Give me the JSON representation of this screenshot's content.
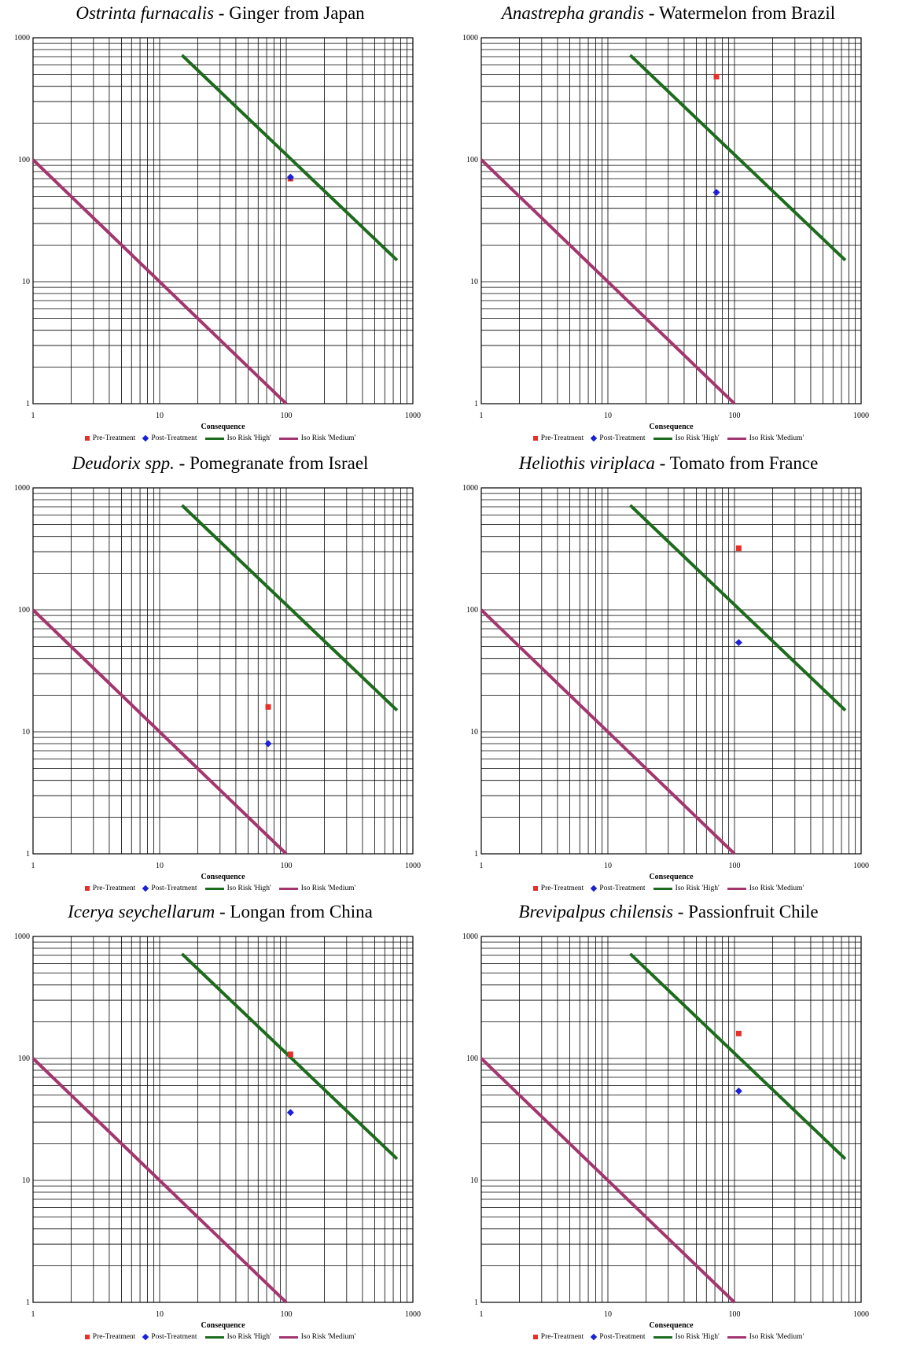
{
  "colors": {
    "pre": "#e8302a",
    "post": "#1a20d8",
    "high": "#1d6b1d",
    "medium": "#a3366e"
  },
  "legend": {
    "pre": "Pre-Treatment",
    "post": "Post-Treatment",
    "high": "Iso Risk 'High'",
    "medium": "Iso Risk 'Medium'"
  },
  "chart_data": [
    {
      "type": "scatter",
      "title_species": "Ostrinta furnacalis",
      "title_rest": " - Ginger from Japan",
      "xlabel": "Consequence",
      "ylabel": "",
      "x_scale": "log",
      "y_scale": "log",
      "xlim": [
        1,
        1000
      ],
      "ylim": [
        1,
        1000
      ],
      "x_ticks": [
        "1",
        "10",
        "100",
        "1000"
      ],
      "y_ticks": [
        "1",
        "10",
        "100",
        "1000"
      ],
      "grid": true,
      "legend_position": "bottom",
      "series": [
        {
          "name": "Pre-Treatment",
          "points": [
            [
              108,
              70
            ]
          ]
        },
        {
          "name": "Post-Treatment",
          "points": [
            [
              108,
              72
            ]
          ]
        },
        {
          "name": "Iso Risk 'High'",
          "points": [
            [
              15,
              720
            ],
            [
              750,
              15
            ]
          ]
        },
        {
          "name": "Iso Risk 'Medium'",
          "points": [
            [
              1,
              100
            ],
            [
              100,
              1
            ]
          ]
        }
      ]
    },
    {
      "type": "scatter",
      "title_species": "Anastrepha grandis",
      "title_rest": " - Watermelon from Brazil",
      "xlabel": "Consequence",
      "ylabel": "",
      "x_scale": "log",
      "y_scale": "log",
      "xlim": [
        1,
        1000
      ],
      "ylim": [
        1,
        1000
      ],
      "x_ticks": [
        "1",
        "10",
        "100",
        "1000"
      ],
      "y_ticks": [
        "1",
        "10",
        "100",
        "1000"
      ],
      "grid": true,
      "legend_position": "bottom",
      "series": [
        {
          "name": "Pre-Treatment",
          "points": [
            [
              72,
              480
            ]
          ]
        },
        {
          "name": "Post-Treatment",
          "points": [
            [
              72,
              54
            ]
          ]
        },
        {
          "name": "Iso Risk 'High'",
          "points": [
            [
              15,
              720
            ],
            [
              750,
              15
            ]
          ]
        },
        {
          "name": "Iso Risk 'Medium'",
          "points": [
            [
              1,
              100
            ],
            [
              100,
              1
            ]
          ]
        }
      ]
    },
    {
      "type": "scatter",
      "title_species": "Deudorix spp.",
      "title_rest": " - Pomegranate from Israel",
      "xlabel": "Consequence",
      "ylabel": "",
      "x_scale": "log",
      "y_scale": "log",
      "xlim": [
        1,
        1000
      ],
      "ylim": [
        1,
        1000
      ],
      "x_ticks": [
        "1",
        "10",
        "100",
        "1000"
      ],
      "y_ticks": [
        "1",
        "10",
        "100",
        "1000"
      ],
      "grid": true,
      "legend_position": "bottom",
      "series": [
        {
          "name": "Pre-Treatment",
          "points": [
            [
              72,
              16
            ]
          ]
        },
        {
          "name": "Post-Treatment",
          "points": [
            [
              72,
              8
            ]
          ]
        },
        {
          "name": "Iso Risk 'High'",
          "points": [
            [
              15,
              720
            ],
            [
              750,
              15
            ]
          ]
        },
        {
          "name": "Iso Risk 'Medium'",
          "points": [
            [
              1,
              100
            ],
            [
              100,
              1
            ]
          ]
        }
      ]
    },
    {
      "type": "scatter",
      "title_species": "Heliothis viriplaca",
      "title_rest": " - Tomato from France",
      "xlabel": "Consequence",
      "ylabel": "",
      "x_scale": "log",
      "y_scale": "log",
      "xlim": [
        1,
        1000
      ],
      "ylim": [
        1,
        1000
      ],
      "x_ticks": [
        "1",
        "10",
        "100",
        "1000"
      ],
      "y_ticks": [
        "1",
        "10",
        "100",
        "1000"
      ],
      "grid": true,
      "legend_position": "bottom",
      "series": [
        {
          "name": "Pre-Treatment",
          "points": [
            [
              108,
              320
            ]
          ]
        },
        {
          "name": "Post-Treatment",
          "points": [
            [
              108,
              54
            ]
          ]
        },
        {
          "name": "Iso Risk 'High'",
          "points": [
            [
              15,
              720
            ],
            [
              750,
              15
            ]
          ]
        },
        {
          "name": "Iso Risk 'Medium'",
          "points": [
            [
              1,
              100
            ],
            [
              100,
              1
            ]
          ]
        }
      ]
    },
    {
      "type": "scatter",
      "title_species": "Icerya seychellarum",
      "title_rest": " - Longan from China",
      "xlabel": "Consequence",
      "ylabel": "",
      "x_scale": "log",
      "y_scale": "log",
      "xlim": [
        1,
        1000
      ],
      "ylim": [
        1,
        1000
      ],
      "x_ticks": [
        "1",
        "10",
        "100",
        "1000"
      ],
      "y_ticks": [
        "1",
        "10",
        "100",
        "1000"
      ],
      "grid": true,
      "legend_position": "bottom",
      "series": [
        {
          "name": "Pre-Treatment",
          "points": [
            [
              108,
              108
            ]
          ]
        },
        {
          "name": "Post-Treatment",
          "points": [
            [
              108,
              36
            ]
          ]
        },
        {
          "name": "Iso Risk 'High'",
          "points": [
            [
              15,
              720
            ],
            [
              750,
              15
            ]
          ]
        },
        {
          "name": "Iso Risk 'Medium'",
          "points": [
            [
              1,
              100
            ],
            [
              100,
              1
            ]
          ]
        }
      ]
    },
    {
      "type": "scatter",
      "title_species": "Brevipalpus chilensis",
      "title_rest": " - Passionfruit Chile",
      "xlabel": "Consequence",
      "ylabel": "",
      "x_scale": "log",
      "y_scale": "log",
      "xlim": [
        1,
        1000
      ],
      "ylim": [
        1,
        1000
      ],
      "x_ticks": [
        "1",
        "10",
        "100",
        "1000"
      ],
      "y_ticks": [
        "1",
        "10",
        "100",
        "1000"
      ],
      "grid": true,
      "legend_position": "bottom",
      "series": [
        {
          "name": "Pre-Treatment",
          "points": [
            [
              108,
              160
            ]
          ]
        },
        {
          "name": "Post-Treatment",
          "points": [
            [
              108,
              54
            ]
          ]
        },
        {
          "name": "Iso Risk 'High'",
          "points": [
            [
              15,
              720
            ],
            [
              750,
              15
            ]
          ]
        },
        {
          "name": "Iso Risk 'Medium'",
          "points": [
            [
              1,
              100
            ],
            [
              100,
              1
            ]
          ]
        }
      ]
    }
  ]
}
